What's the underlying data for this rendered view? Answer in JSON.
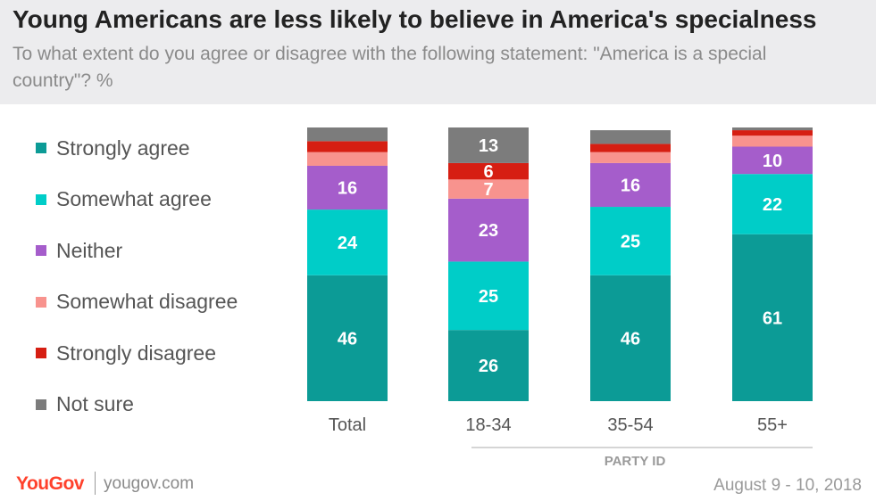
{
  "title": "Young Americans are less likely to believe in America's specialness",
  "subtitle": "To what extent do you agree or disagree with the following statement: \"America is a special country\"? %",
  "footer": {
    "logo": "YouGov",
    "site": "yougov.com",
    "date": "August 9 - 10, 2018"
  },
  "chart_data": {
    "type": "bar",
    "stacked": true,
    "categories": [
      "Total",
      "18-34",
      "35-54",
      "55+"
    ],
    "group_label": "PARTY ID",
    "group_covers": [
      "18-34",
      "35-54",
      "55+"
    ],
    "legend_position": "left",
    "series": [
      {
        "name": "Strongly agree",
        "color": "#0c9b96",
        "values": [
          46,
          26,
          46,
          61
        ],
        "labels": [
          "46",
          "26",
          "46",
          "61"
        ]
      },
      {
        "name": "Somewhat agree",
        "color": "#00cdc8",
        "values": [
          24,
          25,
          25,
          22
        ],
        "labels": [
          "24",
          "25",
          "25",
          "22"
        ]
      },
      {
        "name": "Neither",
        "color": "#a55dcb",
        "values": [
          16,
          23,
          16,
          10
        ],
        "labels": [
          "16",
          "23",
          "16",
          "10"
        ]
      },
      {
        "name": "Somewhat disagree",
        "color": "#f8938e",
        "values": [
          5,
          7,
          4,
          4
        ],
        "labels": [
          "",
          "7",
          "",
          ""
        ]
      },
      {
        "name": "Strongly disagree",
        "color": "#d61e12",
        "values": [
          4,
          6,
          3,
          2
        ],
        "labels": [
          "",
          "6",
          "",
          ""
        ]
      },
      {
        "name": "Not sure",
        "color": "#7c7c7c",
        "values": [
          5,
          13,
          5,
          1
        ],
        "labels": [
          "",
          "13",
          "",
          ""
        ]
      }
    ]
  }
}
